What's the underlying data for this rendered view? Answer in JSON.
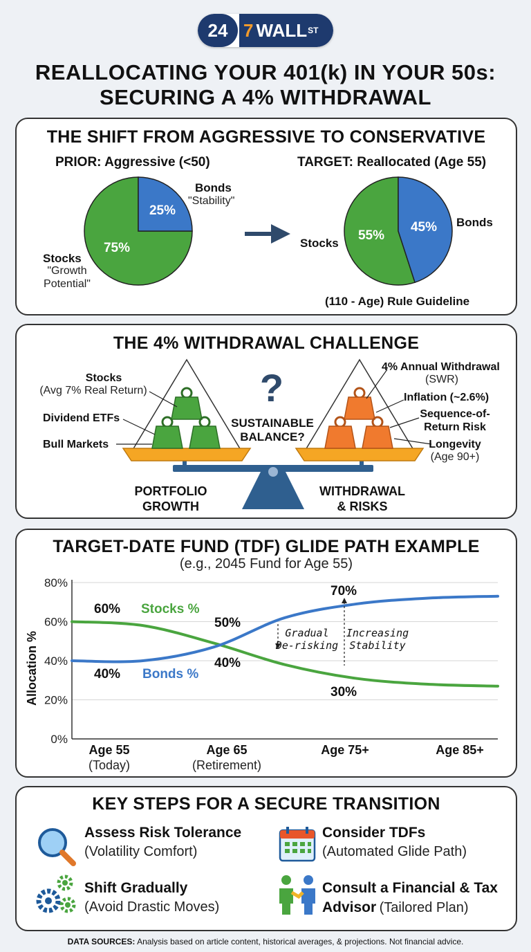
{
  "logo": {
    "num": "24",
    "seven": "7",
    "wall": "WALL",
    "st": "ST"
  },
  "title": {
    "line1": "REALLOCATING YOUR 401(k) IN YOUR 50s:",
    "line2": "SECURING A 4% WITHDRAWAL"
  },
  "shift": {
    "title": "THE SHIFT FROM AGGRESSIVE TO CONSERVATIVE",
    "prior": {
      "heading": "PRIOR: Aggressive (<50)",
      "bonds_pct": "25%",
      "stocks_pct": "75%",
      "bonds_label": "Bonds",
      "bonds_sub": "\"Stability\"",
      "stocks_label": "Stocks",
      "stocks_sub1": "\"Growth",
      "stocks_sub2": "Potential\"",
      "stocks_value": 75,
      "bonds_value": 25
    },
    "target": {
      "heading": "TARGET: Reallocated (Age 55)",
      "bonds_pct": "45%",
      "stocks_pct": "55%",
      "bonds_label": "Bonds",
      "stocks_label": "Stocks",
      "stocks_value": 55,
      "bonds_value": 45
    },
    "rule": "(110 - Age) Rule Guideline",
    "colors": {
      "stocks": "#4aa53f",
      "bonds": "#3b78c8"
    }
  },
  "challenge": {
    "title": "THE 4% WITHDRAWAL CHALLENGE",
    "question_mark": "?",
    "balance1": "SUSTAINABLE",
    "balance2": "BALANCE?",
    "left": {
      "stocks": "Stocks",
      "stocks_sub": "(Avg 7% Real Return)",
      "dividend": "Dividend ETFs",
      "bull": "Bull Markets",
      "caption1": "PORTFOLIO",
      "caption2": "GROWTH"
    },
    "right": {
      "swr": "4% Annual Withdrawal",
      "swr_sub": "(SWR)",
      "inflation": "Inflation (~2.6%)",
      "seq1": "Sequence-of-",
      "seq2": "Return Risk",
      "longevity": "Longevity",
      "longevity_sub": "(Age 90+)",
      "caption1": "WITHDRAWAL",
      "caption2": "& RISKS"
    }
  },
  "glide": {
    "title": "TARGET-DATE FUND (TDF) GLIDE PATH EXAMPLE",
    "subtitle": "(e.g., 2045 Fund for Age 55)",
    "annotations": {
      "stocks_start": "60%",
      "bonds_start": "40%",
      "stocks_mid": "40%",
      "bonds_mid": "50%",
      "bonds_end": "70%",
      "stocks_end": "30%",
      "stocks_name": "Stocks %",
      "bonds_name": "Bonds %",
      "derisk1": "Gradual",
      "derisk2": "De-risking",
      "stability1": "Increasing",
      "stability2": "Stability"
    },
    "chart_data": {
      "type": "line",
      "ylabel": "Allocation %",
      "yticks": [
        "80%",
        "60%",
        "40%",
        "20%",
        "0%"
      ],
      "ylim": [
        0,
        80
      ],
      "x_ticks": [
        {
          "label": "Age 55",
          "sub": "(Today)"
        },
        {
          "label": "Age 65",
          "sub": "(Retirement)"
        },
        {
          "label": "Age 75+",
          "sub": ""
        },
        {
          "label": "Age 85+",
          "sub": ""
        }
      ],
      "x": [
        55,
        60,
        65,
        70,
        75,
        80,
        85
      ],
      "xlim": [
        55,
        85
      ],
      "series": [
        {
          "name": "Stocks %",
          "color": "#4aa53f",
          "values": [
            60,
            58,
            49,
            38,
            31,
            28,
            27
          ]
        },
        {
          "name": "Bonds %",
          "color": "#3b78c8",
          "values": [
            40,
            40,
            47,
            62,
            69,
            72,
            73
          ]
        }
      ],
      "grid": true
    }
  },
  "steps": {
    "title": "KEY STEPS FOR A SECURE TRANSITION",
    "items": [
      {
        "title": "Assess Risk Tolerance",
        "sub": "(Volatility Comfort)",
        "icon": "magnifier-icon"
      },
      {
        "title": "Consider TDFs",
        "sub": "(Automated Glide Path)",
        "icon": "calendar-icon"
      },
      {
        "title": "Shift Gradually",
        "sub": "(Avoid Drastic Moves)",
        "icon": "gears-icon"
      },
      {
        "title": "Consult a Financial & Tax",
        "title2": "Advisor",
        "sub": "(Tailored Plan)",
        "icon": "handshake-icon"
      }
    ]
  },
  "footer": {
    "label": "DATA SOURCES:",
    "text": " Analysis based on article content, historical averages, & projections. Not financial advice."
  }
}
